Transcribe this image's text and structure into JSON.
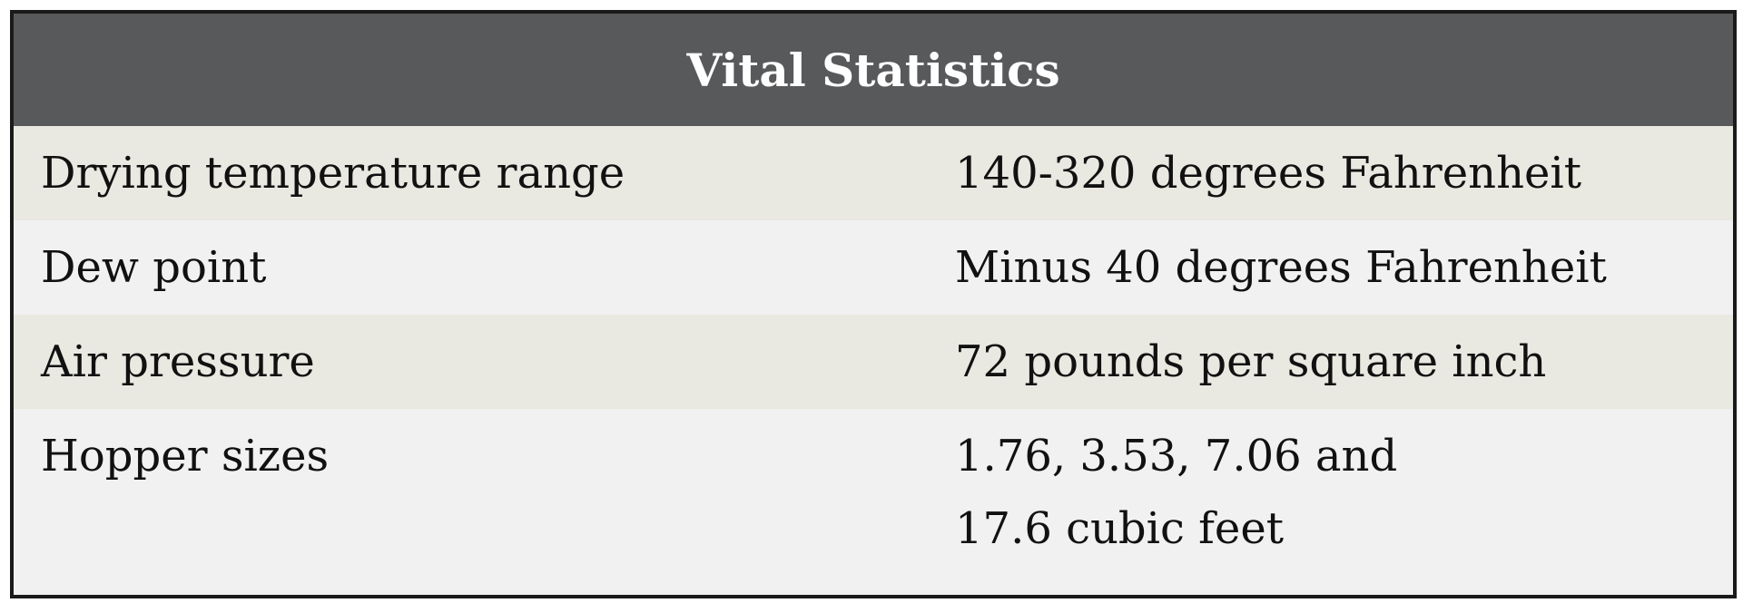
{
  "table": {
    "title": "Vital Statistics",
    "rows": [
      [
        "Drying temperature range",
        "140-320 degrees Fahrenheit"
      ],
      [
        "Dew point",
        "Minus 40 degrees Fahrenheit"
      ],
      [
        "Air pressure",
        "72 pounds per square inch"
      ],
      [
        "Hopper sizes",
        [
          "1.76, 3.53, 7.06 and",
          "17.6 cubic feet"
        ]
      ]
    ]
  }
}
